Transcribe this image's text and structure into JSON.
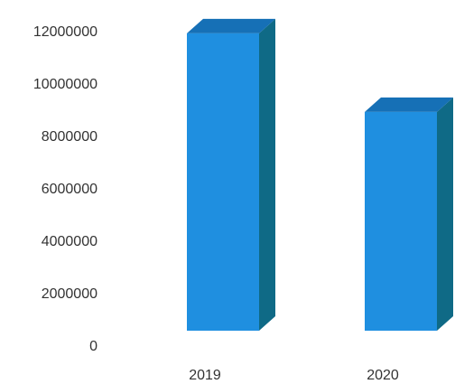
{
  "chart_data": {
    "type": "bar",
    "style": "3d-column",
    "categories": [
      "2019",
      "2020"
    ],
    "values": [
      11900000,
      8900000
    ],
    "title": "",
    "xlabel": "",
    "ylabel": "",
    "ylim": [
      0,
      12000000
    ],
    "yticks": [
      0,
      2000000,
      4000000,
      6000000,
      8000000,
      10000000,
      12000000
    ],
    "ytick_labels": [
      "0",
      "2000000",
      "4000000",
      "6000000",
      "8000000",
      "10000000",
      "12000000"
    ],
    "grid": false,
    "legend": "none",
    "colors": {
      "front": "#1f8fe0",
      "top": "#1670b6",
      "side": "#0f6a86"
    }
  }
}
